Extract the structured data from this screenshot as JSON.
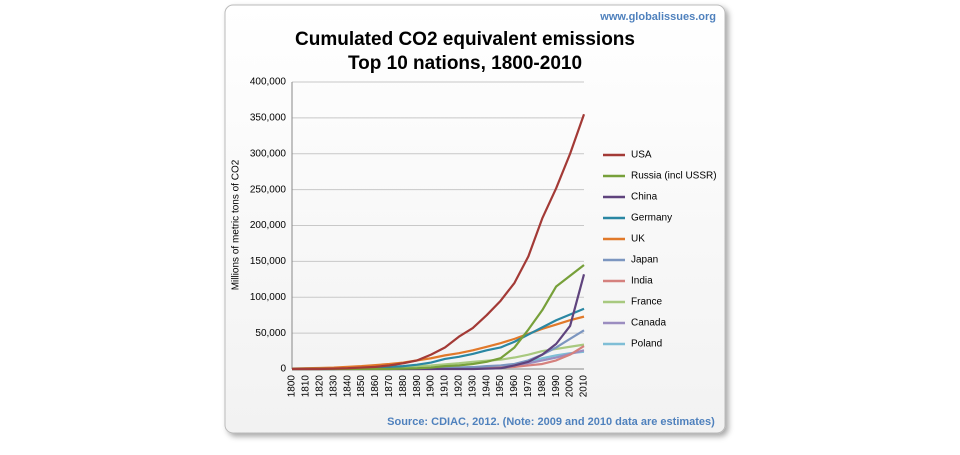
{
  "chart_data": {
    "type": "line",
    "title": "Cumulated CO2 equivalent emissions",
    "subtitle": "Top 10 nations, 1800-2010",
    "website": "www.globalissues.org",
    "source": "Source: CDIAC, 2012. (Note: 2009 and 2010 data are estimates)",
    "y_label": "Millions of metric tons of CO2",
    "categories": [
      "1800",
      "1810",
      "1820",
      "1830",
      "1840",
      "1850",
      "1860",
      "1870",
      "1880",
      "1890",
      "1900",
      "1910",
      "1920",
      "1930",
      "1940",
      "1950",
      "1960",
      "1970",
      "1980",
      "1990",
      "2000",
      "2010"
    ],
    "ylim": [
      0,
      400000
    ],
    "yticks": [
      0,
      {
        "value": 50000,
        "label": "50,000"
      },
      {
        "value": 100000,
        "label": "100,000"
      },
      {
        "value": 150000,
        "label": "150,000"
      },
      {
        "value": 200000,
        "label": "200,000"
      },
      {
        "value": 250000,
        "label": "250,000"
      },
      {
        "value": 300000,
        "label": "300,000"
      },
      {
        "value": 350000,
        "label": "350,000"
      },
      {
        "value": 400000,
        "label": "400,000"
      }
    ],
    "grid": true,
    "legend": "right",
    "series": [
      {
        "name": "USA",
        "color": "#a33a36",
        "values": [
          0,
          0,
          0,
          500,
          1000,
          2000,
          3000,
          5000,
          8000,
          12000,
          20000,
          30000,
          45000,
          57000,
          75000,
          95000,
          120000,
          157000,
          210000,
          252000,
          300000,
          355000
        ]
      },
      {
        "name": "Russia (incl USSR)",
        "color": "#77a03a",
        "values": [
          0,
          0,
          0,
          0,
          0,
          0,
          0,
          0,
          500,
          1000,
          2000,
          4000,
          5000,
          7000,
          10000,
          15000,
          30000,
          55000,
          82000,
          115000,
          130000,
          145000
        ]
      },
      {
        "name": "China",
        "color": "#5f437d",
        "values": [
          0,
          0,
          0,
          0,
          0,
          0,
          0,
          0,
          0,
          0,
          0,
          0,
          0,
          0,
          500,
          1000,
          5000,
          10000,
          20000,
          35000,
          60000,
          132000
        ]
      },
      {
        "name": "Germany",
        "color": "#2a87a3",
        "values": [
          0,
          0,
          0,
          0,
          500,
          1000,
          2000,
          3000,
          4000,
          6000,
          9000,
          14000,
          17000,
          21000,
          26000,
          30000,
          38000,
          48000,
          58000,
          68000,
          76000,
          84000
        ]
      },
      {
        "name": "UK",
        "color": "#e1792a",
        "values": [
          500,
          1000,
          1500,
          2000,
          3000,
          4000,
          5500,
          7000,
          9000,
          12000,
          15000,
          19000,
          22000,
          26000,
          31000,
          36000,
          42000,
          49000,
          56000,
          62000,
          68000,
          73000
        ]
      },
      {
        "name": "Japan",
        "color": "#7c96c0",
        "values": [
          0,
          0,
          0,
          0,
          0,
          0,
          0,
          0,
          0,
          0,
          500,
          1000,
          1500,
          2500,
          4000,
          5000,
          7000,
          12000,
          20000,
          30000,
          42000,
          54000
        ]
      },
      {
        "name": "India",
        "color": "#d5817e",
        "values": [
          0,
          0,
          0,
          0,
          0,
          0,
          0,
          0,
          0,
          0,
          0,
          500,
          1000,
          1500,
          2000,
          2000,
          3000,
          5000,
          7000,
          12000,
          20000,
          32000
        ]
      },
      {
        "name": "France",
        "color": "#a8c97f",
        "values": [
          0,
          0,
          0,
          0,
          500,
          1000,
          1500,
          2000,
          3000,
          4000,
          5000,
          6500,
          8000,
          10000,
          11500,
          13000,
          16000,
          20000,
          25000,
          28000,
          31000,
          34000
        ]
      },
      {
        "name": "Canada",
        "color": "#9b8dc0",
        "values": [
          0,
          0,
          0,
          0,
          0,
          0,
          0,
          0,
          0,
          500,
          1000,
          1500,
          2000,
          2500,
          2800,
          3000,
          5000,
          8000,
          12000,
          16000,
          21000,
          26000
        ]
      },
      {
        "name": "Poland",
        "color": "#7fbed6",
        "values": [
          0,
          0,
          0,
          0,
          0,
          0,
          0,
          0,
          500,
          1000,
          1500,
          2000,
          2300,
          2600,
          2800,
          3000,
          6000,
          10000,
          15000,
          19000,
          22000,
          24000
        ]
      }
    ]
  }
}
